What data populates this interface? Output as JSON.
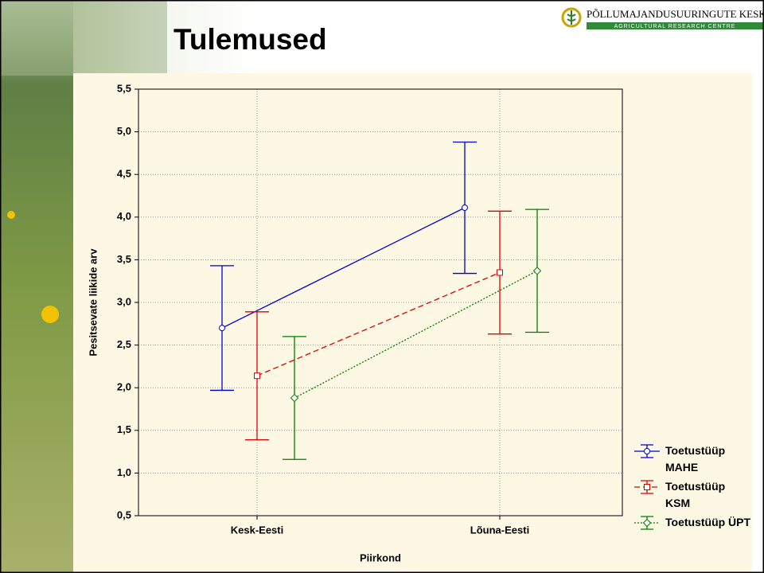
{
  "slide": {
    "title": "Tulemused",
    "logo_name": "PÕLLUMAJANDUSUURINGUTE KESKUS",
    "logo_subtitle": "AGRICULTURAL RESEARCH CENTRE"
  },
  "chart_data": {
    "type": "errorbar-line",
    "x_label": "Piirkond",
    "y_label": "Pesitsevate liikide arv",
    "categories": [
      "Kesk-Eesti",
      "Lõuna-Eesti"
    ],
    "series": [
      {
        "name": "Toetustüüp MAHE",
        "color": "#0000cc",
        "style": "solid",
        "marker": "circle",
        "values": [
          2.7,
          4.11
        ],
        "errors": [
          0.73,
          0.77
        ]
      },
      {
        "name": "Toetustüüp KSM",
        "color": "#e00000",
        "style": "dashed",
        "marker": "square",
        "values": [
          2.14,
          3.35
        ],
        "errors": [
          0.75,
          0.72
        ]
      },
      {
        "name": "Toetustüüp ÜPT",
        "color": "#007a00",
        "style": "dotted",
        "marker": "diamond",
        "values": [
          1.88,
          3.37
        ],
        "errors": [
          0.72,
          0.72
        ]
      }
    ],
    "ylim": [
      0.5,
      5.5
    ],
    "yticks": [
      {
        "value": 0.5,
        "label": "0,5"
      },
      {
        "value": 1.0,
        "label": "1,0"
      },
      {
        "value": 1.5,
        "label": "1,5"
      },
      {
        "value": 2.0,
        "label": "2,0"
      },
      {
        "value": 2.5,
        "label": "2,5"
      },
      {
        "value": 3.0,
        "label": "3,0"
      },
      {
        "value": 3.5,
        "label": "3,5"
      },
      {
        "value": 4.0,
        "label": "4,0"
      },
      {
        "value": 4.5,
        "label": "4,5"
      },
      {
        "value": 5.0,
        "label": "5,0"
      },
      {
        "value": 5.5,
        "label": "5,5"
      }
    ],
    "grid": true,
    "legend": "bottom-right"
  }
}
